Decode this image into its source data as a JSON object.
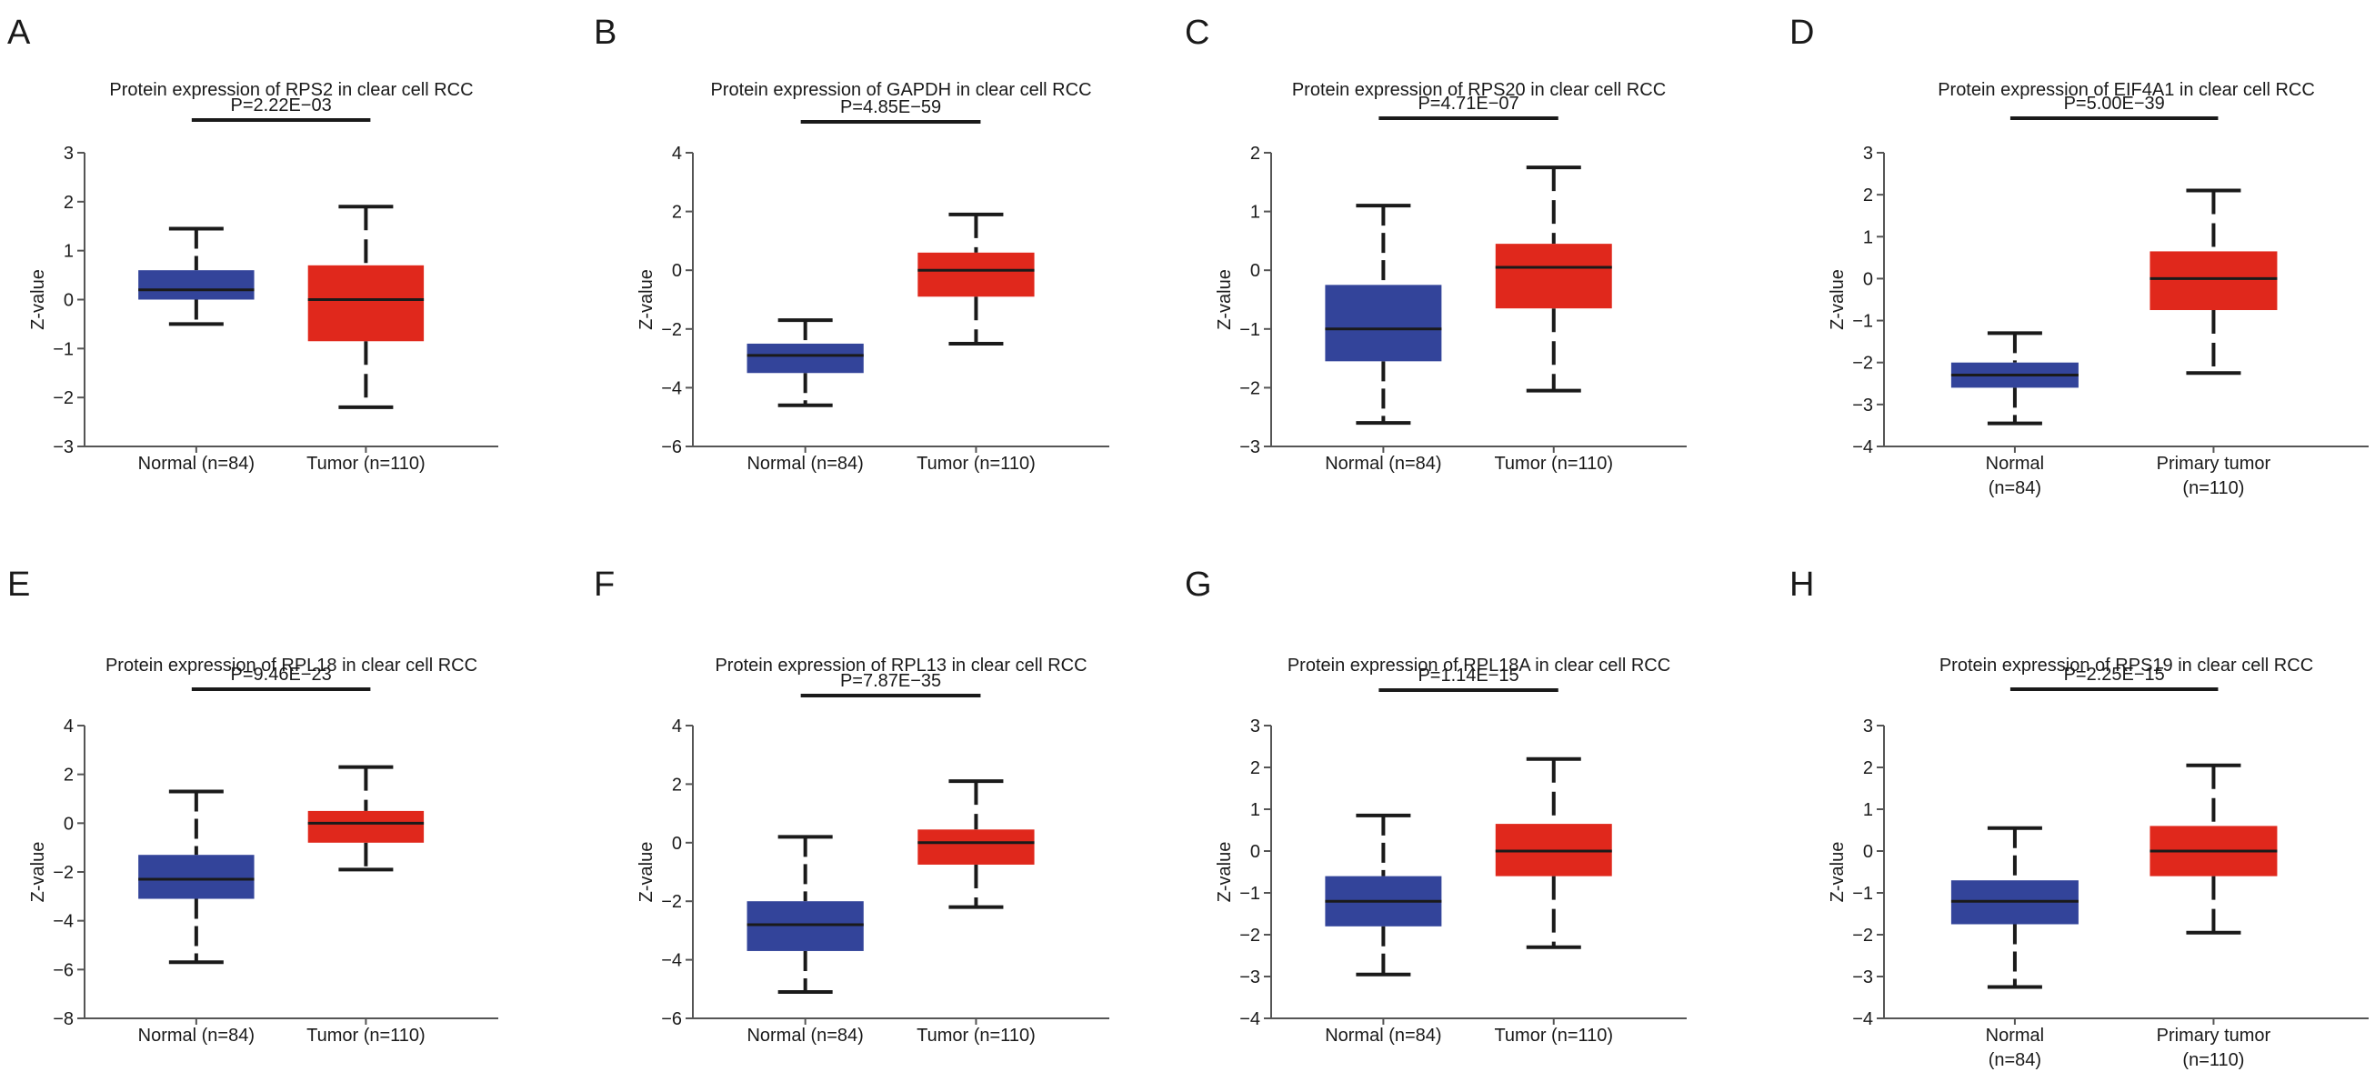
{
  "colors": {
    "normal": "#33449a",
    "tumor": "#e0281c",
    "ink": "#1a1a1a"
  },
  "chart_data": [
    {
      "panel": "A",
      "type": "box",
      "title": "Protein expression of RPS2 in clear cell RCC",
      "ylabel": "Z-value",
      "yticks": [
        "3",
        "2",
        "1",
        "0",
        "−1",
        "−2",
        "−3"
      ],
      "ylim": [
        -3,
        3
      ],
      "pvalue": "P=2.22E−03",
      "groups": [
        {
          "label": [
            "Normal (n=84)"
          ],
          "color": "normal",
          "min": -0.5,
          "q1": 0.0,
          "median": 0.2,
          "q3": 0.6,
          "max": 1.45
        },
        {
          "label": [
            "Tumor (n=110)"
          ],
          "color": "tumor",
          "min": -2.2,
          "q1": -0.85,
          "median": 0.0,
          "q3": 0.7,
          "max": 1.9
        }
      ]
    },
    {
      "panel": "B",
      "type": "box",
      "title": "Protein expression of GAPDH in clear cell RCC",
      "ylabel": "Z-value",
      "yticks": [
        "4",
        "2",
        "0",
        "−2",
        "−4",
        "−6"
      ],
      "ylim": [
        -6,
        4
      ],
      "pvalue": "P=4.85E−59",
      "groups": [
        {
          "label": [
            "Normal (n=84)"
          ],
          "color": "normal",
          "min": -4.6,
          "q1": -3.5,
          "median": -2.9,
          "q3": -2.5,
          "max": -1.7
        },
        {
          "label": [
            "Tumor (n=110)"
          ],
          "color": "tumor",
          "min": -2.5,
          "q1": -0.9,
          "median": 0.0,
          "q3": 0.6,
          "max": 1.9
        }
      ]
    },
    {
      "panel": "C",
      "type": "box",
      "title": "Protein expression of RPS20 in clear cell RCC",
      "ylabel": "Z-value",
      "yticks": [
        "2",
        "1",
        "0",
        "−1",
        "−2",
        "−3"
      ],
      "ylim": [
        -3,
        2
      ],
      "pvalue": "P=4.71E−07",
      "groups": [
        {
          "label": [
            "Normal (n=84)"
          ],
          "color": "normal",
          "min": -2.6,
          "q1": -1.55,
          "median": -1.0,
          "q3": -0.25,
          "max": 1.1
        },
        {
          "label": [
            "Tumor (n=110)"
          ],
          "color": "tumor",
          "min": -2.05,
          "q1": -0.65,
          "median": 0.05,
          "q3": 0.45,
          "max": 1.75
        }
      ]
    },
    {
      "panel": "D",
      "type": "box",
      "title": "Protein expression of EIF4A1 in clear cell RCC",
      "ylabel": "Z-value",
      "yticks": [
        "3",
        "2",
        "1",
        "0",
        "−1",
        "−2",
        "−3",
        "−4"
      ],
      "ylim": [
        -4,
        3
      ],
      "pvalue": "P=5.00E−39",
      "groups": [
        {
          "label": [
            "Normal",
            "(n=84)"
          ],
          "color": "normal",
          "min": -3.45,
          "q1": -2.6,
          "median": -2.3,
          "q3": -2.0,
          "max": -1.3
        },
        {
          "label": [
            "Primary tumor",
            "(n=110)"
          ],
          "color": "tumor",
          "min": -2.25,
          "q1": -0.75,
          "median": 0.0,
          "q3": 0.65,
          "max": 2.1
        }
      ]
    },
    {
      "panel": "E",
      "type": "box",
      "title": "Protein expression of RPL18 in clear cell RCC",
      "ylabel": "Z-value",
      "yticks": [
        "4",
        "2",
        "0",
        "−2",
        "−4",
        "−6",
        "−8"
      ],
      "ylim": [
        -8,
        4
      ],
      "pvalue": "P=9.46E−23",
      "groups": [
        {
          "label": [
            "Normal (n=84)"
          ],
          "color": "normal",
          "min": -5.7,
          "q1": -3.1,
          "median": -2.3,
          "q3": -1.3,
          "max": 1.3
        },
        {
          "label": [
            "Tumor (n=110)"
          ],
          "color": "tumor",
          "min": -1.9,
          "q1": -0.8,
          "median": 0.0,
          "q3": 0.5,
          "max": 2.3
        }
      ]
    },
    {
      "panel": "F",
      "type": "box",
      "title": "Protein expression of RPL13 in clear cell RCC",
      "ylabel": "Z-value",
      "yticks": [
        "4",
        "2",
        "0",
        "−2",
        "−4",
        "−6"
      ],
      "ylim": [
        -6,
        4
      ],
      "pvalue": "P=7.87E−35",
      "groups": [
        {
          "label": [
            "Normal (n=84)"
          ],
          "color": "normal",
          "min": -5.1,
          "q1": -3.7,
          "median": -2.8,
          "q3": -2.0,
          "max": 0.2
        },
        {
          "label": [
            "Tumor (n=110)"
          ],
          "color": "tumor",
          "min": -2.2,
          "q1": -0.75,
          "median": 0.0,
          "q3": 0.45,
          "max": 2.1
        }
      ]
    },
    {
      "panel": "G",
      "type": "box",
      "title": "Protein expression of RPL18A in clear cell RCC",
      "ylabel": "Z-value",
      "yticks": [
        "3",
        "2",
        "1",
        "0",
        "−1",
        "−2",
        "−3",
        "−4"
      ],
      "ylim": [
        -4,
        3
      ],
      "pvalue": "P=1.14E−15",
      "groups": [
        {
          "label": [
            "Normal (n=84)"
          ],
          "color": "normal",
          "min": -2.95,
          "q1": -1.8,
          "median": -1.2,
          "q3": -0.6,
          "max": 0.85
        },
        {
          "label": [
            "Tumor (n=110)"
          ],
          "color": "tumor",
          "min": -2.3,
          "q1": -0.6,
          "median": 0.0,
          "q3": 0.65,
          "max": 2.2
        }
      ]
    },
    {
      "panel": "H",
      "type": "box",
      "title": "Protein expression of RPS19 in clear cell RCC",
      "ylabel": "Z-value",
      "yticks": [
        "3",
        "2",
        "1",
        "0",
        "−1",
        "−2",
        "−3",
        "−4"
      ],
      "ylim": [
        -4,
        3
      ],
      "pvalue": "P=2.25E−15",
      "groups": [
        {
          "label": [
            "Normal",
            "(n=84)"
          ],
          "color": "normal",
          "min": -3.25,
          "q1": -1.75,
          "median": -1.2,
          "q3": -0.7,
          "max": 0.55
        },
        {
          "label": [
            "Primary tumor",
            "(n=110)"
          ],
          "color": "tumor",
          "min": -1.95,
          "q1": -0.6,
          "median": 0.0,
          "q3": 0.6,
          "max": 2.05
        }
      ]
    }
  ]
}
